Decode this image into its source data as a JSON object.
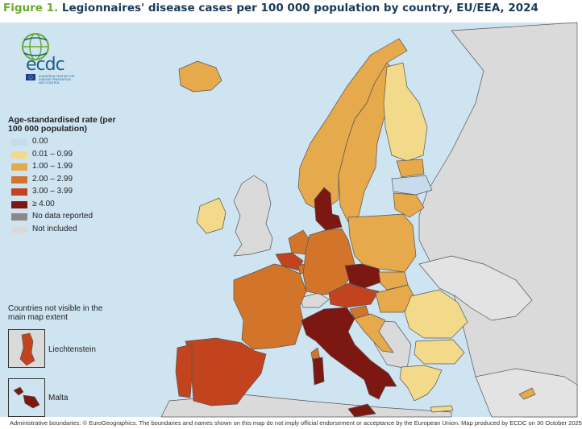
{
  "title": {
    "figure_label": "Figure 1.",
    "text": "Legionnaires' disease cases per 100 000 population by country, EU/EEA, 2024"
  },
  "logo": {
    "name": "ecdc",
    "subtitle_line1": "EUROPEAN CENTRE FOR",
    "subtitle_line2": "DISEASE PREVENTION",
    "subtitle_line3": "AND CONTROL"
  },
  "legend": {
    "title": "Age-standardised rate (per 100 000 population)",
    "items": [
      {
        "label": "0.00",
        "color": "#c6dced"
      },
      {
        "label": "0.01 – 0.99",
        "color": "#f3d98a"
      },
      {
        "label": "1.00 – 1.99",
        "color": "#e6a94c"
      },
      {
        "label": "2.00 – 2.99",
        "color": "#d2752a"
      },
      {
        "label": "3.00 – 3.99",
        "color": "#c1441f"
      },
      {
        "label": "≥ 4.00",
        "color": "#7d1711"
      },
      {
        "label": "No data reported",
        "color": "#8a8a8a"
      },
      {
        "label": "Not included",
        "color": "#dadada"
      }
    ]
  },
  "insets": {
    "title": "Countries not visible in the main map extent",
    "items": [
      {
        "label": "Liechtenstein",
        "color": "#c1441f"
      },
      {
        "label": "Malta",
        "color": "#7d1711"
      }
    ]
  },
  "colors": {
    "sea": "#cfe4f1",
    "not_included": "#dadada",
    "border": "#555555"
  },
  "footer": "Administrative boundaries: © EuroGeographics. The boundaries and names shown on this map do not imply official endorsement or acceptance by the European Union. Map produced by ECDC on 30 October 2025"
}
